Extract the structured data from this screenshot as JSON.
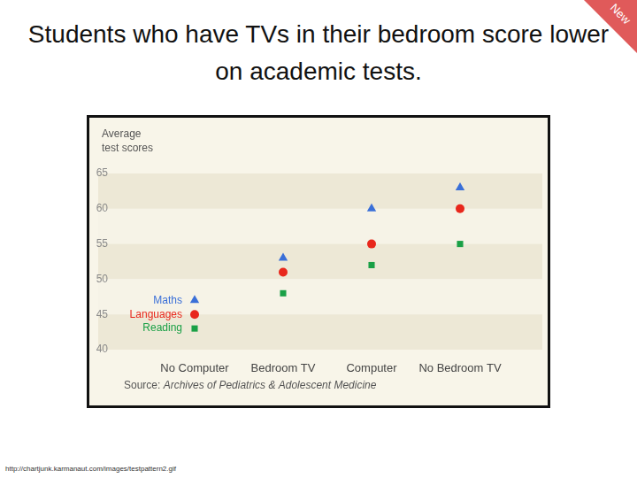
{
  "title": "Students who have TVs in their bedroom score lower on academic tests.",
  "badge": "New",
  "footer": "http://chartjunk.karmanaut.com/images/testpattern2.gif",
  "chart_data": {
    "type": "scatter",
    "ylabel": "Average test scores",
    "categories": [
      "No Computer",
      "Bedroom TV",
      "Computer",
      "No Bedroom TV"
    ],
    "series": [
      {
        "name": "Maths",
        "color": "#3a6fd8",
        "marker": "triangle",
        "values": [
          47,
          53,
          60,
          63
        ]
      },
      {
        "name": "Languages",
        "color": "#e8271c",
        "marker": "circle",
        "values": [
          45,
          51,
          55,
          60
        ]
      },
      {
        "name": "Reading",
        "color": "#1aa046",
        "marker": "square",
        "values": [
          43,
          48,
          52,
          55
        ]
      }
    ],
    "ylim": [
      40,
      65
    ],
    "yticks": [
      40,
      45,
      50,
      55,
      60,
      65
    ],
    "grid": true,
    "source": "Source: Archives of Pediatrics & Adolescent Medicine"
  }
}
